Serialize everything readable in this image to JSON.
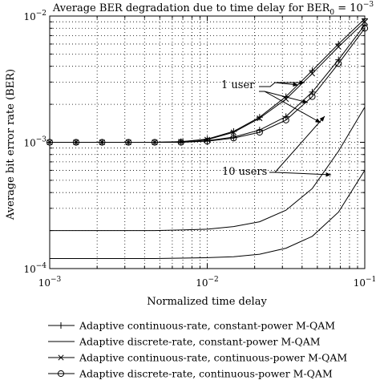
{
  "chart_data": {
    "type": "line",
    "title": "Average BER degradation due to time delay for BER",
    "title_sub": "0",
    "title_eq": " = 10",
    "title_exp": "−3",
    "xlabel": "Normalized time delay",
    "ylabel": "Average bit error rate (BER)",
    "x_scale": "log",
    "y_scale": "log",
    "xlim": [
      0.001,
      0.1
    ],
    "ylim": [
      0.0001,
      0.01
    ],
    "x_ticks": [
      {
        "base": "10",
        "exp": "−3"
      },
      {
        "base": "10",
        "exp": "−2"
      },
      {
        "base": "10",
        "exp": "−1"
      }
    ],
    "y_ticks": [
      {
        "base": "10",
        "exp": "−4"
      },
      {
        "base": "10",
        "exp": "−3"
      },
      {
        "base": "10",
        "exp": "−2"
      }
    ],
    "grid": true,
    "legend_position": "below",
    "annotations": [
      "1 user",
      "10 users"
    ],
    "x": [
      0.001,
      0.00147,
      0.00215,
      0.00316,
      0.00464,
      0.00681,
      0.01,
      0.0147,
      0.0215,
      0.0316,
      0.0464,
      0.0681,
      0.1
    ],
    "series": [
      {
        "name": "Adaptive continuous-rate, constant-power M-QAM",
        "marker": "plus",
        "group": "1 user",
        "values": [
          0.001,
          0.001,
          0.001,
          0.001,
          0.001,
          0.00101,
          0.00106,
          0.00122,
          0.00158,
          0.0023,
          0.0037,
          0.006,
          0.0095
        ]
      },
      {
        "name": "Adaptive continuous-rate, constant-power M-QAM",
        "marker": "plus",
        "group": "10 users",
        "values": [
          0.001,
          0.001,
          0.001,
          0.001,
          0.001,
          0.001,
          0.00103,
          0.0011,
          0.00125,
          0.0016,
          0.0025,
          0.0045,
          0.0085
        ]
      },
      {
        "name": "Adaptive discrete-rate, constant-power M-QAM",
        "marker": "none",
        "group": "1 user",
        "values": [
          0.0002,
          0.0002,
          0.0002,
          0.0002,
          0.0002,
          0.000202,
          0.000205,
          0.000215,
          0.000235,
          0.00029,
          0.00043,
          0.00085,
          0.0019
        ]
      },
      {
        "name": "Adaptive discrete-rate, constant-power M-QAM",
        "marker": "none",
        "group": "10 users",
        "values": [
          0.00012,
          0.00012,
          0.00012,
          0.00012,
          0.00012,
          0.000121,
          0.000122,
          0.000124,
          0.00013,
          0.000145,
          0.00018,
          0.00028,
          0.0006
        ]
      },
      {
        "name": "Adaptive continuous-rate, continuous-power M-QAM",
        "marker": "x",
        "group": "1 user",
        "values": [
          0.001,
          0.001,
          0.001,
          0.001,
          0.001,
          0.00101,
          0.00105,
          0.0012,
          0.00155,
          0.0022,
          0.0035,
          0.0057,
          0.009
        ]
      },
      {
        "name": "Adaptive discrete-rate, continuous-power M-QAM",
        "marker": "circle",
        "group": "10 users",
        "values": [
          0.001,
          0.001,
          0.001,
          0.001,
          0.001,
          0.001,
          0.00102,
          0.00108,
          0.0012,
          0.0015,
          0.0023,
          0.0042,
          0.008
        ]
      }
    ],
    "legend": [
      {
        "label": "Adaptive continuous-rate, constant-power M-QAM",
        "marker": "plus"
      },
      {
        "label": "Adaptive discrete-rate, constant-power M-QAM",
        "marker": "none"
      },
      {
        "label": "Adaptive continuous-rate, continuous-power M-QAM",
        "marker": "x"
      },
      {
        "label": "Adaptive discrete-rate, continuous-power M-QAM",
        "marker": "circle"
      }
    ]
  }
}
